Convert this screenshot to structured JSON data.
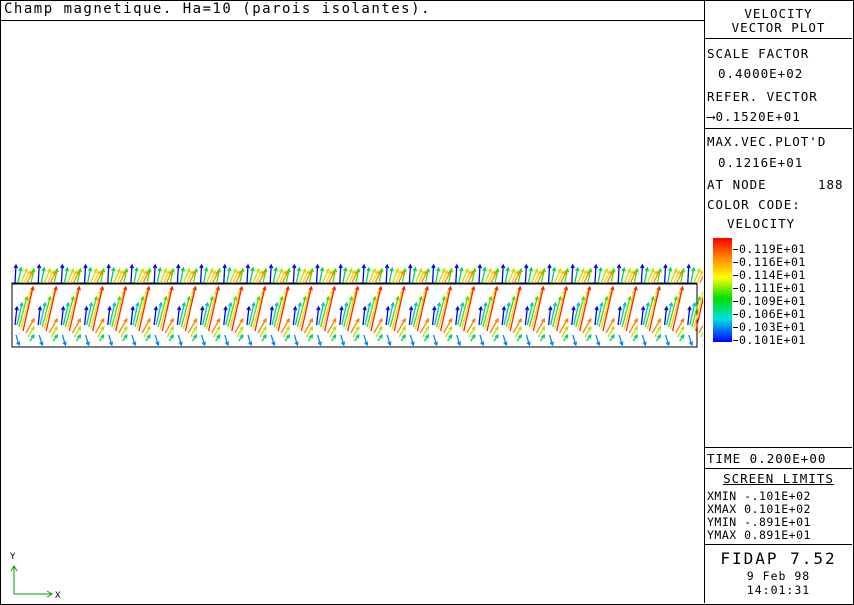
{
  "plot": {
    "title": "Champ magnetique. Ha=10 (parois isolantes).",
    "axis_y_label": "Y",
    "axis_x_label": "X"
  },
  "panel": {
    "header_line1": "VELOCITY",
    "header_line2": "VECTOR PLOT",
    "scale_factor_label": "SCALE FACTOR",
    "scale_factor_value": "0.4000E+02",
    "refer_vector_label": "REFER. VECTOR",
    "refer_vector_value": "0.1520E+01",
    "max_vec_label": "MAX.VEC.PLOT'D",
    "max_vec_value": "0.1216E+01",
    "at_node_label": "AT NODE",
    "at_node_value": "188",
    "color_code_label": "COLOR CODE:",
    "color_code_var": "VELOCITY",
    "legend": [
      "0.119E+01",
      "0.116E+01",
      "0.114E+01",
      "0.111E+01",
      "0.109E+01",
      "0.106E+01",
      "0.103E+01",
      "0.101E+01"
    ],
    "time_label": "TIME",
    "time_value": "0.200E+00",
    "screen_limits_label": "SCREEN LIMITS",
    "xmin": "XMIN -.101E+02",
    "xmax": "XMAX 0.101E+02",
    "ymin": "YMIN -.891E+01",
    "ymax": "YMAX 0.891E+01",
    "software": "FIDAP 7.52",
    "date": "9 Feb 98",
    "clock": "14:01:31"
  },
  "colors": {
    "legend_gradient": [
      "#ff0000",
      "#ff8000",
      "#ffff00",
      "#00e000",
      "#00e0e0",
      "#0000ff"
    ]
  }
}
